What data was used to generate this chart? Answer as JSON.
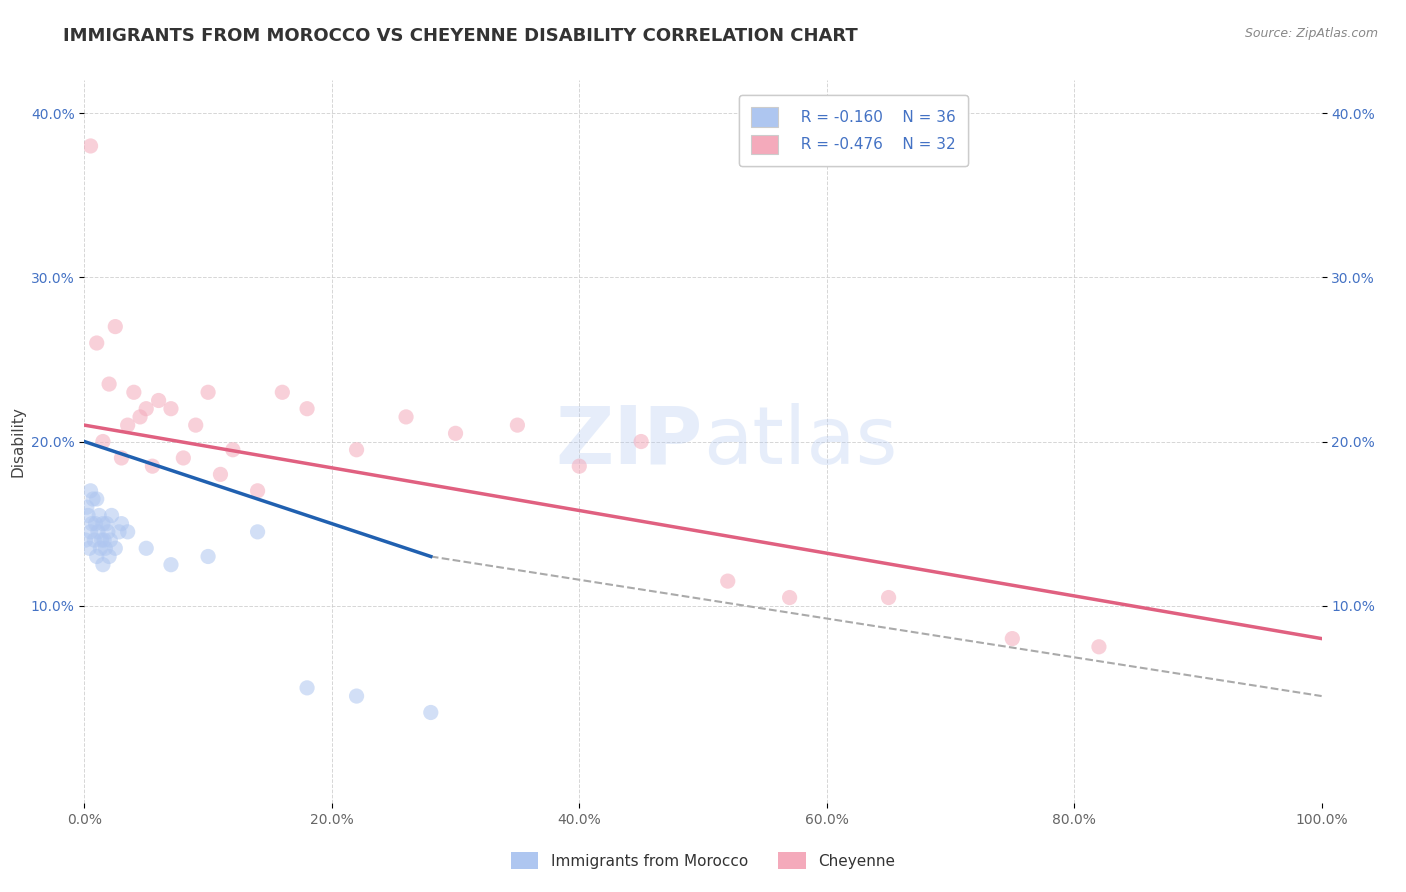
{
  "title": "IMMIGRANTS FROM MOROCCO VS CHEYENNE DISABILITY CORRELATION CHART",
  "source": "Source: ZipAtlas.com",
  "ylabel": "Disability",
  "watermark": "ZIPatlas",
  "legend_entries": [
    {
      "label": "Immigrants from Morocco",
      "color": "#aec6f0",
      "R": -0.16,
      "N": 36
    },
    {
      "label": "Cheyenne",
      "color": "#f4aabb",
      "R": -0.476,
      "N": 32
    }
  ],
  "blue_scatter_x": [
    0.1,
    0.2,
    0.3,
    0.4,
    0.5,
    0.5,
    0.6,
    0.7,
    0.8,
    0.9,
    1.0,
    1.0,
    1.1,
    1.2,
    1.3,
    1.4,
    1.5,
    1.5,
    1.6,
    1.7,
    1.8,
    1.9,
    2.0,
    2.1,
    2.2,
    2.5,
    2.8,
    3.0,
    3.5,
    5.0,
    7.0,
    10.0,
    14.0,
    18.0,
    22.0,
    28.0
  ],
  "blue_scatter_y": [
    14.0,
    16.0,
    15.5,
    13.5,
    17.0,
    14.5,
    15.0,
    16.5,
    14.0,
    15.0,
    13.0,
    16.5,
    14.5,
    15.5,
    13.5,
    14.0,
    15.0,
    12.5,
    14.0,
    13.5,
    15.0,
    14.5,
    13.0,
    14.0,
    15.5,
    13.5,
    14.5,
    15.0,
    14.5,
    13.5,
    12.5,
    13.0,
    14.5,
    5.0,
    4.5,
    3.5
  ],
  "pink_scatter_x": [
    0.5,
    1.0,
    1.5,
    2.0,
    2.5,
    3.0,
    3.5,
    4.0,
    4.5,
    5.0,
    5.5,
    6.0,
    7.0,
    8.0,
    9.0,
    10.0,
    11.0,
    12.0,
    14.0,
    16.0,
    18.0,
    22.0,
    26.0,
    30.0,
    35.0,
    40.0,
    45.0,
    52.0,
    57.0,
    65.0,
    75.0,
    82.0
  ],
  "pink_scatter_y": [
    38.0,
    26.0,
    20.0,
    23.5,
    27.0,
    19.0,
    21.0,
    23.0,
    21.5,
    22.0,
    18.5,
    22.5,
    22.0,
    19.0,
    21.0,
    23.0,
    18.0,
    19.5,
    17.0,
    23.0,
    22.0,
    19.5,
    21.5,
    20.5,
    21.0,
    18.5,
    20.0,
    11.5,
    10.5,
    10.5,
    8.0,
    7.5
  ],
  "blue_line_x0": 0.0,
  "blue_line_x1": 28.0,
  "blue_line_y0": 20.0,
  "blue_line_y1": 13.0,
  "blue_dash_x0": 28.0,
  "blue_dash_x1": 100.0,
  "blue_dash_y0": 13.0,
  "blue_dash_y1": 4.5,
  "pink_line_x0": 0.0,
  "pink_line_x1": 100.0,
  "pink_line_y0": 21.0,
  "pink_line_y1": 8.0,
  "xmin": 0.0,
  "xmax": 100.0,
  "ymin": 0.0,
  "ymax": 42.0,
  "yticks": [
    10.0,
    20.0,
    30.0,
    40.0
  ],
  "xticks": [
    0.0,
    20.0,
    40.0,
    60.0,
    80.0,
    100.0
  ],
  "grid_color": "#cccccc",
  "blue_line_color": "#2060b0",
  "pink_line_color": "#e06080",
  "dashed_line_color": "#aaaaaa",
  "scatter_alpha": 0.55,
  "scatter_size": 120,
  "background_color": "#ffffff",
  "title_fontsize": 13,
  "axis_label_fontsize": 11,
  "tick_label_fontsize": 10,
  "tick_color": "#4472c4"
}
